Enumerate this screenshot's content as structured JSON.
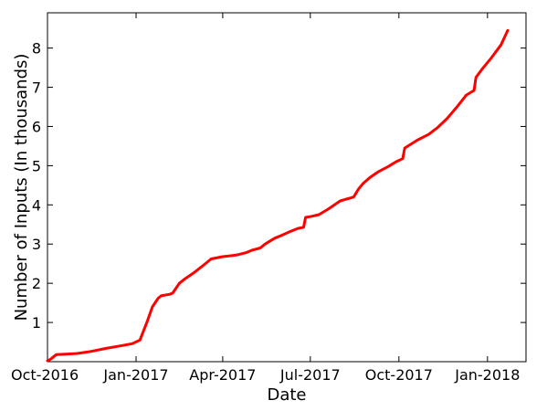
{
  "chart_data": {
    "type": "line",
    "title": "",
    "xlabel": "Date",
    "ylabel": "Number of Inputs (In thousands)",
    "x_type": "date",
    "xlim": [
      "2016-10-01",
      "2018-02-10"
    ],
    "ylim": [
      0,
      8.9
    ],
    "grid": false,
    "line_color": "#ff0000",
    "x_ticks": [
      {
        "value": "2016-10-01",
        "label": "Oct-2016"
      },
      {
        "value": "2017-01-01",
        "label": "Jan-2017"
      },
      {
        "value": "2017-04-01",
        "label": "Apr-2017"
      },
      {
        "value": "2017-07-01",
        "label": "Jul-2017"
      },
      {
        "value": "2017-10-01",
        "label": "Oct-2017"
      },
      {
        "value": "2018-01-01",
        "label": "Jan-2018"
      }
    ],
    "y_ticks": [
      {
        "value": 1,
        "label": "1"
      },
      {
        "value": 2,
        "label": "2"
      },
      {
        "value": 3,
        "label": "3"
      },
      {
        "value": 4,
        "label": "4"
      },
      {
        "value": 5,
        "label": "5"
      },
      {
        "value": 6,
        "label": "6"
      },
      {
        "value": 7,
        "label": "7"
      },
      {
        "value": 8,
        "label": "8"
      }
    ],
    "series": [
      {
        "x": [
          "2016-10-01",
          "2016-10-04",
          "2016-10-10",
          "2016-10-20",
          "2016-11-01",
          "2016-11-15",
          "2016-12-01",
          "2016-12-15",
          "2016-12-28",
          "2017-01-05",
          "2017-01-13",
          "2017-01-18",
          "2017-01-24",
          "2017-01-27",
          "2017-02-05",
          "2017-02-08",
          "2017-02-15",
          "2017-02-20",
          "2017-03-01",
          "2017-03-10",
          "2017-03-20",
          "2017-04-01",
          "2017-04-15",
          "2017-04-25",
          "2017-05-01",
          "2017-05-10",
          "2017-05-15",
          "2017-05-25",
          "2017-06-01",
          "2017-06-10",
          "2017-06-18",
          "2017-06-24",
          "2017-06-26",
          "2017-07-01",
          "2017-07-10",
          "2017-07-20",
          "2017-08-01",
          "2017-08-15",
          "2017-08-20",
          "2017-08-25",
          "2017-09-01",
          "2017-09-10",
          "2017-09-20",
          "2017-09-28",
          "2017-10-05",
          "2017-10-07",
          "2017-10-20",
          "2017-11-01",
          "2017-11-10",
          "2017-11-20",
          "2017-12-01",
          "2017-12-10",
          "2017-12-18",
          "2017-12-20",
          "2017-12-26",
          "2018-01-05",
          "2018-01-15",
          "2018-01-22"
        ],
        "y": [
          0.02,
          0.06,
          0.18,
          0.19,
          0.21,
          0.26,
          0.34,
          0.4,
          0.46,
          0.55,
          1.05,
          1.4,
          1.62,
          1.68,
          1.72,
          1.75,
          2.0,
          2.1,
          2.25,
          2.42,
          2.62,
          2.68,
          2.72,
          2.78,
          2.84,
          2.9,
          3.0,
          3.15,
          3.22,
          3.32,
          3.4,
          3.43,
          3.68,
          3.7,
          3.75,
          3.9,
          4.1,
          4.2,
          4.4,
          4.55,
          4.7,
          4.85,
          4.98,
          5.1,
          5.18,
          5.45,
          5.65,
          5.8,
          5.97,
          6.2,
          6.52,
          6.8,
          6.92,
          7.25,
          7.45,
          7.75,
          8.08,
          8.45
        ]
      }
    ]
  }
}
